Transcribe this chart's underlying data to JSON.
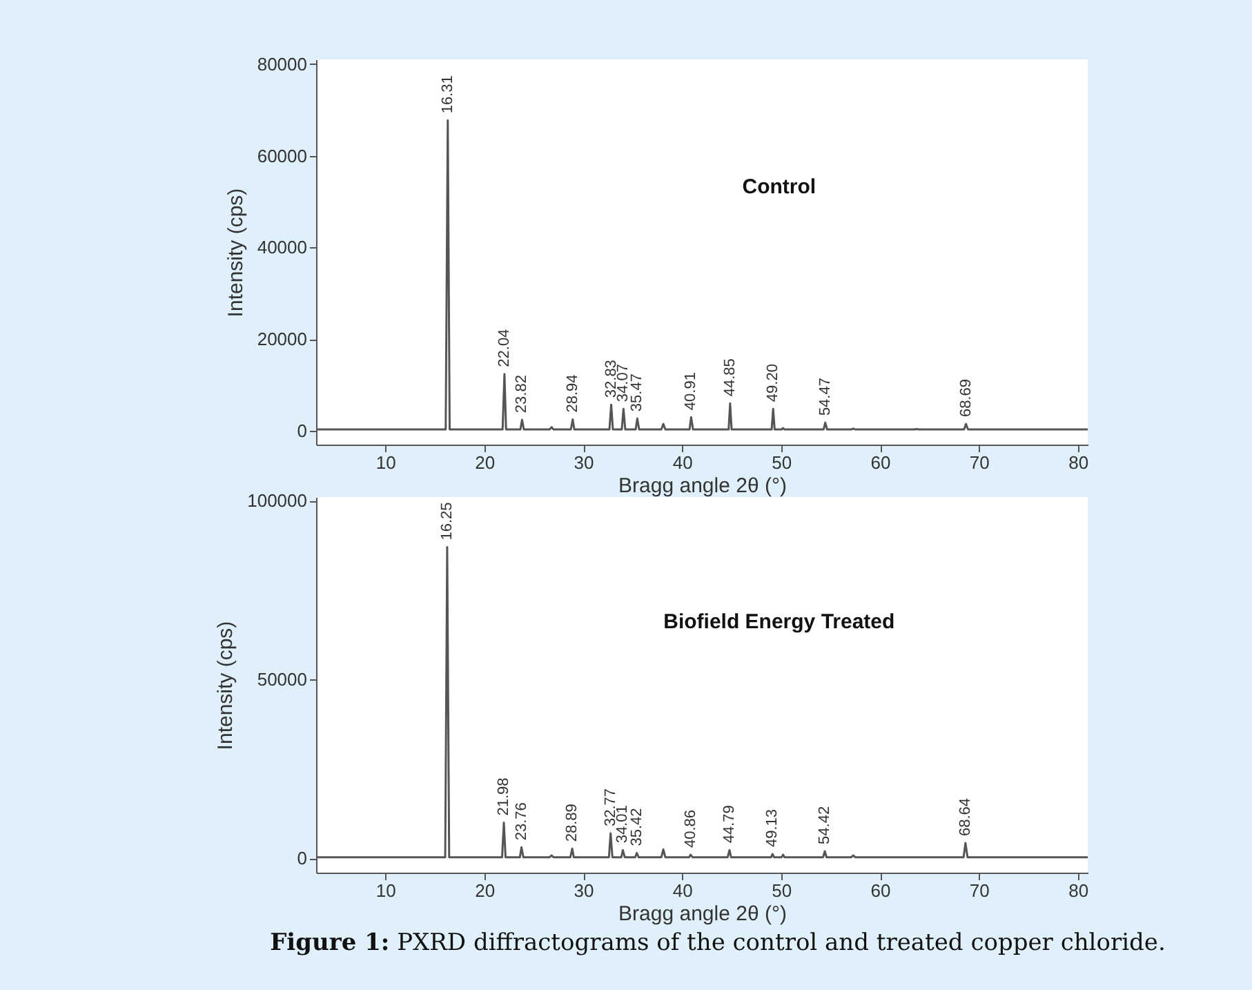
{
  "chart_data": [
    {
      "type": "line",
      "title": "Control",
      "xlabel": "Bragg angle 2θ (°)",
      "ylabel": "Intensity (cps)",
      "xlim": [
        3,
        81
      ],
      "xticks": [
        10,
        20,
        30,
        40,
        50,
        60,
        70,
        80
      ],
      "ylim": [
        -3000,
        81000
      ],
      "yticks": [
        0,
        20000,
        40000,
        60000,
        80000
      ],
      "grid": false,
      "series": [
        {
          "color": "#555555",
          "x": [
            3,
            16.1,
            16.31,
            16.5,
            21.85,
            22.04,
            22.2,
            23.65,
            23.82,
            24,
            26.6,
            26.8,
            27,
            28.75,
            28.94,
            29.1,
            32.65,
            32.83,
            33,
            33.9,
            34.07,
            34.25,
            35.3,
            35.47,
            35.65,
            37.9,
            38.1,
            38.3,
            40.75,
            40.91,
            41.1,
            44.7,
            44.85,
            45,
            49.05,
            49.2,
            49.35,
            50.05,
            50.2,
            50.35,
            54.3,
            54.47,
            54.65,
            57.1,
            57.3,
            57.5,
            63.5,
            63.7,
            63.9,
            68.5,
            68.69,
            68.9,
            81
          ],
          "values": [
            300,
            300,
            67700,
            300,
            300,
            12400,
            300,
            300,
            2400,
            300,
            300,
            800,
            300,
            300,
            2500,
            300,
            300,
            5700,
            300,
            300,
            4800,
            300,
            300,
            2700,
            300,
            300,
            1500,
            300,
            300,
            3000,
            300,
            300,
            6000,
            300,
            300,
            4800,
            300,
            300,
            600,
            300,
            300,
            1800,
            300,
            300,
            500,
            300,
            300,
            400,
            300,
            300,
            1500,
            300,
            300
          ]
        }
      ],
      "annotations": [
        {
          "text": "16.31",
          "x": 16.31,
          "y": 67700
        },
        {
          "text": "22.04",
          "x": 22.04,
          "y": 12400
        },
        {
          "text": "23.82",
          "x": 23.82,
          "y": 2400
        },
        {
          "text": "28.94",
          "x": 28.94,
          "y": 2500
        },
        {
          "text": "32.83",
          "x": 32.83,
          "y": 5700
        },
        {
          "text": "34.07",
          "x": 34.07,
          "y": 4800
        },
        {
          "text": "35.47",
          "x": 35.47,
          "y": 2700
        },
        {
          "text": "40.91",
          "x": 40.91,
          "y": 3000
        },
        {
          "text": "44.85",
          "x": 44.85,
          "y": 6000
        },
        {
          "text": "49.20",
          "x": 49.2,
          "y": 4800
        },
        {
          "text": "54.47",
          "x": 54.47,
          "y": 1800
        },
        {
          "text": "68.69",
          "x": 68.69,
          "y": 1500
        }
      ]
    },
    {
      "type": "line",
      "title": "Biofield Energy Treated",
      "xlabel": "Bragg angle 2θ (°)",
      "ylabel": "Intensity (cps)",
      "xlim": [
        3,
        81
      ],
      "xticks": [
        10,
        20,
        30,
        40,
        50,
        60,
        70,
        80
      ],
      "ylim": [
        -4000,
        101000
      ],
      "yticks": [
        0,
        50000,
        100000
      ],
      "grid": false,
      "series": [
        {
          "color": "#555555",
          "x": [
            3,
            16.05,
            16.25,
            16.45,
            21.8,
            21.98,
            22.15,
            23.6,
            23.76,
            23.95,
            26.6,
            26.8,
            27,
            28.7,
            28.89,
            29.05,
            32.6,
            32.77,
            32.95,
            33.85,
            34.01,
            34.2,
            35.25,
            35.42,
            35.6,
            37.9,
            38.1,
            38.3,
            40.7,
            40.86,
            41.05,
            44.6,
            44.79,
            44.95,
            49,
            49.13,
            49.3,
            50.05,
            50.2,
            50.35,
            54.25,
            54.42,
            54.6,
            57.1,
            57.3,
            57.5,
            68.45,
            68.64,
            68.85,
            81
          ],
          "values": [
            300,
            300,
            87000,
            300,
            300,
            10000,
            300,
            300,
            3100,
            300,
            300,
            800,
            300,
            300,
            2700,
            300,
            300,
            7000,
            300,
            300,
            2300,
            300,
            300,
            1500,
            300,
            300,
            2500,
            300,
            300,
            1000,
            300,
            300,
            2300,
            300,
            300,
            1200,
            300,
            300,
            1000,
            300,
            300,
            2000,
            300,
            300,
            800,
            300,
            300,
            4300,
            300,
            300
          ]
        }
      ],
      "annotations": [
        {
          "text": "16.25",
          "x": 16.25,
          "y": 87000
        },
        {
          "text": "21.98",
          "x": 21.98,
          "y": 10000
        },
        {
          "text": "23.76",
          "x": 23.76,
          "y": 3100
        },
        {
          "text": "28.89",
          "x": 28.89,
          "y": 2700
        },
        {
          "text": "32.77",
          "x": 32.77,
          "y": 7000
        },
        {
          "text": "34.01",
          "x": 34.01,
          "y": 2300
        },
        {
          "text": "35.42",
          "x": 35.42,
          "y": 1500
        },
        {
          "text": "40.86",
          "x": 40.86,
          "y": 1000
        },
        {
          "text": "44.79",
          "x": 44.79,
          "y": 2300
        },
        {
          "text": "49.13",
          "x": 49.13,
          "y": 1200
        },
        {
          "text": "54.42",
          "x": 54.42,
          "y": 2000
        },
        {
          "text": "68.64",
          "x": 68.64,
          "y": 4300
        },
        "Figure 1: PXRD diffractograms of the control and treated copper chloride."
      ]
    }
  ]
}
